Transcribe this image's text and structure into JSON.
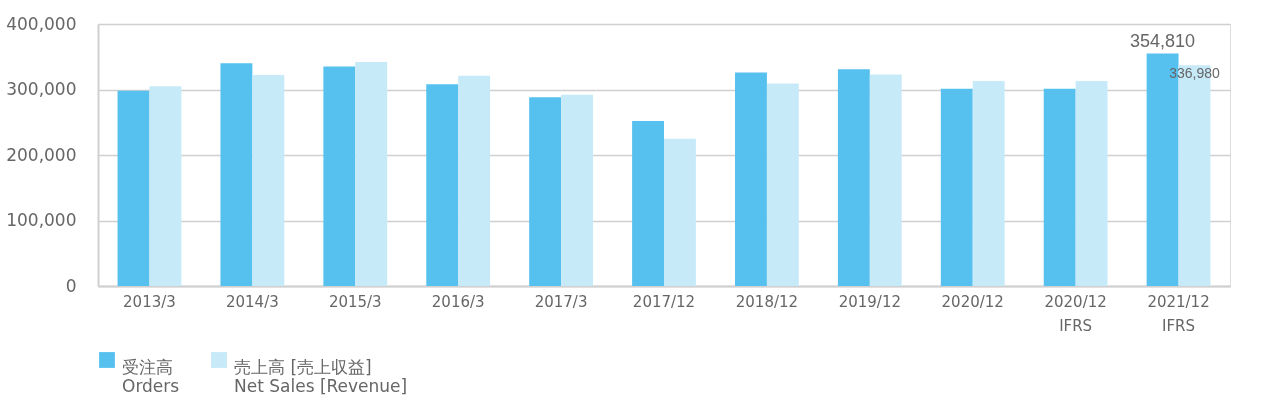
{
  "chart_data": {
    "type": "bar",
    "categories": [
      "2013/3",
      "2014/3",
      "2015/3",
      "2016/3",
      "2017/3",
      "2017/12",
      "2018/12",
      "2019/12",
      "2020/12",
      "2020/12\nIFRS",
      "2021/12\nIFRS"
    ],
    "series": [
      {
        "name": "受注高\nOrders",
        "color": "#56c1ef",
        "values": [
          298000,
          340000,
          335000,
          308000,
          288000,
          252000,
          326000,
          331000,
          301000,
          301000,
          354810
        ],
        "value_labels": [
          null,
          null,
          null,
          null,
          null,
          null,
          null,
          null,
          null,
          null,
          "354,810"
        ]
      },
      {
        "name": "売上高 [売上収益]\nNet Sales [Revenue]",
        "color": "#c7eaf9",
        "values": [
          305000,
          322000,
          342000,
          321000,
          292000,
          225000,
          309000,
          323000,
          313000,
          313000,
          336980
        ],
        "value_labels": [
          null,
          null,
          null,
          null,
          null,
          null,
          null,
          null,
          null,
          null,
          "336,980"
        ]
      }
    ],
    "ylim": [
      0,
      400000
    ],
    "yticks": [
      0,
      {
        "value": 100000,
        "label": "100,000"
      },
      {
        "value": 200000,
        "label": "200,000"
      },
      {
        "value": 300000,
        "label": "300,000"
      },
      {
        "value": 400000,
        "label": "400,000"
      }
    ],
    "grid": "y",
    "legend": "bottom"
  }
}
